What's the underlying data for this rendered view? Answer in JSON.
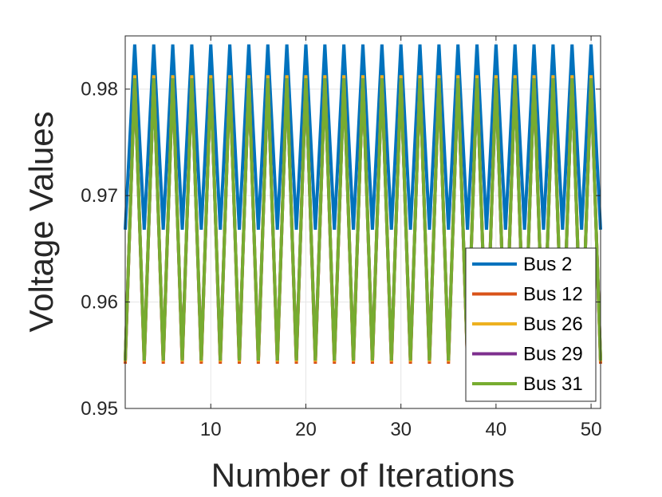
{
  "chart_data": {
    "type": "line",
    "title": "",
    "xlabel": "Number of Iterations",
    "ylabel": "Voltage Values",
    "xlim": [
      1,
      51
    ],
    "ylim": [
      0.95,
      0.985
    ],
    "xticks": [
      10,
      20,
      30,
      40,
      50
    ],
    "xtick_labels": [
      "10",
      "20",
      "30",
      "40",
      "50"
    ],
    "yticks": [
      0.95,
      0.96,
      0.97,
      0.98
    ],
    "ytick_labels": [
      "0.95",
      "0.96",
      "0.97",
      "0.98"
    ],
    "grid": true,
    "legend_position": "bottom-right",
    "pattern_note": "Each series alternates between its low value at odd iterations and its high value at even iterations, from iteration 1 to 51.",
    "series": [
      {
        "name": "Bus 2",
        "color": "#0072BD",
        "low": 0.9668,
        "high": 0.9842
      },
      {
        "name": "Bus 12",
        "color": "#D95319",
        "low": 0.9542,
        "high": 0.9812
      },
      {
        "name": "Bus 26",
        "color": "#EDB120",
        "low": 0.9544,
        "high": 0.9813
      },
      {
        "name": "Bus 29",
        "color": "#7E2F8E",
        "low": 0.9545,
        "high": 0.981
      },
      {
        "name": "Bus 31",
        "color": "#77AC30",
        "low": 0.9545,
        "high": 0.981
      }
    ]
  }
}
